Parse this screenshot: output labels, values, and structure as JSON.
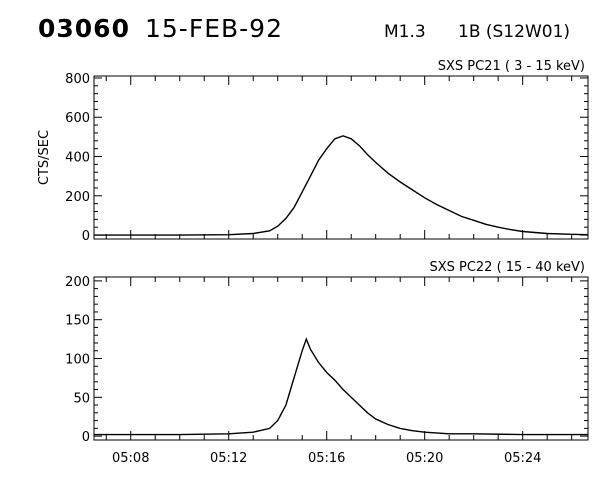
{
  "header": {
    "event_id": "03060",
    "date": "15-FEB-92",
    "flare_class": "M1.3",
    "flare_location": "1B (S12W01)"
  },
  "chart_data": [
    {
      "type": "line",
      "title": "SXS PC21  (  3 - 15 keV)",
      "ylabel": "CTS/SEC",
      "xlabel": "",
      "ylim": [
        -20,
        810
      ],
      "yticks": [
        0,
        200,
        400,
        600,
        800
      ],
      "ytick_labels": [
        "0",
        "200",
        "400",
        "600",
        "800"
      ],
      "xlim": [
        "05:06:30",
        "05:26:40"
      ],
      "xticks": [
        "05:08",
        "05:12",
        "05:16",
        "05:20",
        "05:24"
      ],
      "xtick_labels": [],
      "series": [
        {
          "x": [
            "05:06:30",
            "05:08:00",
            "05:10:00",
            "05:12:00",
            "05:13:00",
            "05:13:40",
            "05:14:00",
            "05:14:20",
            "05:14:40",
            "05:15:00",
            "05:15:20",
            "05:15:40",
            "05:16:00",
            "05:16:20",
            "05:16:40",
            "05:17:00",
            "05:17:20",
            "05:17:40",
            "05:18:00",
            "05:18:30",
            "05:19:00",
            "05:19:30",
            "05:20:00",
            "05:20:30",
            "05:21:00",
            "05:21:30",
            "05:22:00",
            "05:22:30",
            "05:23:00",
            "05:23:30",
            "05:24:00",
            "05:25:00",
            "05:26:00",
            "05:26:40"
          ],
          "y": [
            0,
            0,
            0,
            2,
            8,
            22,
            45,
            85,
            140,
            220,
            300,
            380,
            440,
            490,
            505,
            490,
            455,
            410,
            370,
            315,
            270,
            230,
            190,
            155,
            125,
            95,
            75,
            55,
            40,
            28,
            18,
            8,
            4,
            2
          ]
        }
      ]
    },
    {
      "type": "line",
      "title": "SXS PC22  ( 15 - 40 keV)",
      "ylabel": "",
      "xlabel": "",
      "ylim": [
        -5,
        205
      ],
      "yticks": [
        0,
        50,
        100,
        150,
        200
      ],
      "ytick_labels": [
        "0",
        "50",
        "100",
        "150",
        "200"
      ],
      "xlim": [
        "05:06:30",
        "05:26:40"
      ],
      "xticks": [
        "05:08",
        "05:12",
        "05:16",
        "05:20",
        "05:24"
      ],
      "xtick_labels": [
        "05:08",
        "05:12",
        "05:16",
        "05:20",
        "05:24"
      ],
      "series": [
        {
          "x": [
            "05:06:30",
            "05:08:00",
            "05:10:00",
            "05:12:00",
            "05:13:00",
            "05:13:40",
            "05:14:00",
            "05:14:20",
            "05:14:40",
            "05:15:00",
            "05:15:10",
            "05:15:20",
            "05:15:40",
            "05:16:00",
            "05:16:20",
            "05:16:40",
            "05:17:00",
            "05:17:20",
            "05:17:40",
            "05:18:00",
            "05:18:30",
            "05:19:00",
            "05:19:30",
            "05:20:00",
            "05:21:00",
            "05:22:00",
            "05:24:00",
            "05:26:40"
          ],
          "y": [
            2,
            2,
            2,
            3,
            5,
            10,
            20,
            40,
            75,
            110,
            125,
            112,
            95,
            82,
            72,
            60,
            50,
            40,
            30,
            22,
            15,
            10,
            7,
            5,
            3,
            3,
            2,
            2
          ]
        }
      ]
    }
  ]
}
